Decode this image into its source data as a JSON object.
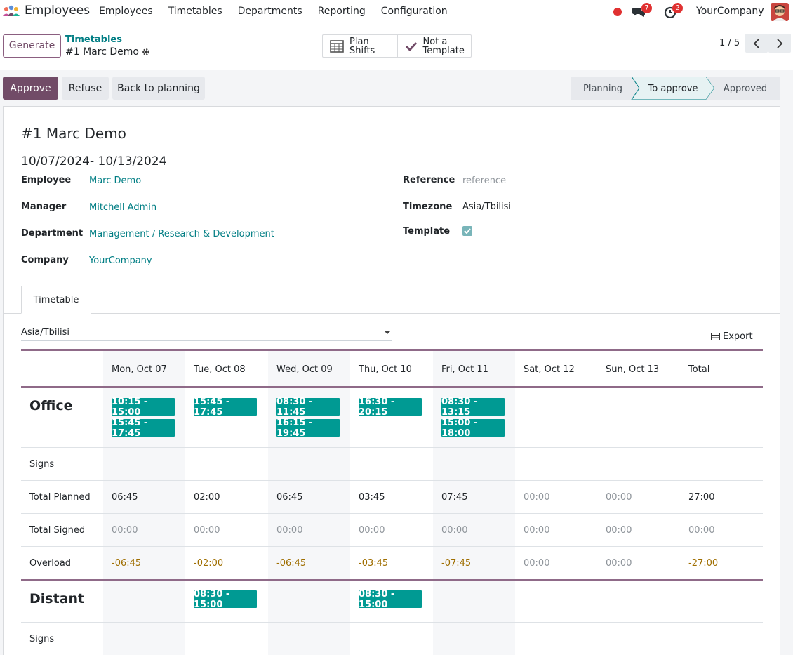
{
  "navbar": {
    "app_name": "Employees",
    "menu": [
      "Employees",
      "Timetables",
      "Departments",
      "Reporting",
      "Configuration"
    ],
    "chat_count": "7",
    "activity_count": "2",
    "company": "YourCompany"
  },
  "control": {
    "generate_label": "Generate",
    "breadcrumb_parent": "Timetables",
    "record_name": "#1 Marc Demo",
    "plan_shifts_label": "Plan Shifts",
    "plan_line1": "Plan",
    "plan_line2": "Shifts",
    "not_template_line1": "Not a",
    "not_template_line2": "Template",
    "pager": "1 / 5"
  },
  "statusbar": {
    "approve": "Approve",
    "refuse": "Refuse",
    "back": "Back to planning",
    "stages": [
      "Planning",
      "To approve",
      "Approved"
    ],
    "current_stage": "To approve"
  },
  "form": {
    "title": "#1 Marc Demo",
    "date_range": "10/07/2024- 10/13/2024",
    "employee_label": "Employee",
    "employee": "Marc Demo",
    "manager_label": "Manager",
    "manager": "Mitchell Admin",
    "department_label": "Department",
    "department": "Management / Research & Development",
    "company_label": "Company",
    "company": "YourCompany",
    "reference_label": "Reference",
    "reference_placeholder": "reference",
    "timezone_label": "Timezone",
    "timezone": "Asia/Tbilisi",
    "template_label": "Template",
    "template_checked": true
  },
  "tabs": [
    "Timetable"
  ],
  "timetable": {
    "timezone": "Asia/Tbilisi",
    "export_label": "Export",
    "columns": [
      "Mon, Oct 07",
      "Tue, Oct 08",
      "Wed, Oct 09",
      "Thu, Oct 10",
      "Fri, Oct 11",
      "Sat, Oct 12",
      "Sun, Oct 13",
      "Total"
    ],
    "groups": [
      {
        "name": "Office",
        "shifts": [
          [
            "10:15 - 15:00",
            "15:45 - 17:45"
          ],
          [
            "15:45 - 17:45"
          ],
          [
            "08:30 - 11:45",
            "16:15 - 19:45"
          ],
          [
            "16:30 - 20:15"
          ],
          [
            "08:30 - 13:15",
            "15:00 - 18:00"
          ],
          [],
          []
        ],
        "signs_label": "Signs",
        "total_planned_label": "Total Planned",
        "total_planned": [
          "06:45",
          "02:00",
          "06:45",
          "03:45",
          "07:45",
          "00:00",
          "00:00",
          "27:00"
        ],
        "total_signed_label": "Total Signed",
        "total_signed": [
          "00:00",
          "00:00",
          "00:00",
          "00:00",
          "00:00",
          "00:00",
          "00:00",
          "00:00"
        ],
        "overload_label": "Overload",
        "overload": [
          "-06:45",
          "-02:00",
          "-06:45",
          "-03:45",
          "-07:45",
          "00:00",
          "00:00",
          "-27:00"
        ]
      },
      {
        "name": "Distant",
        "shifts": [
          [],
          [
            "08:30 - 15:00"
          ],
          [],
          [
            "08:30 - 15:00"
          ],
          [],
          [],
          []
        ],
        "signs_label": "Signs"
      }
    ]
  },
  "colors": {
    "primary": "#714b67",
    "link": "#017e84",
    "shift": "#009a93",
    "negative": "#9f6e00",
    "badge": "#e03131"
  }
}
